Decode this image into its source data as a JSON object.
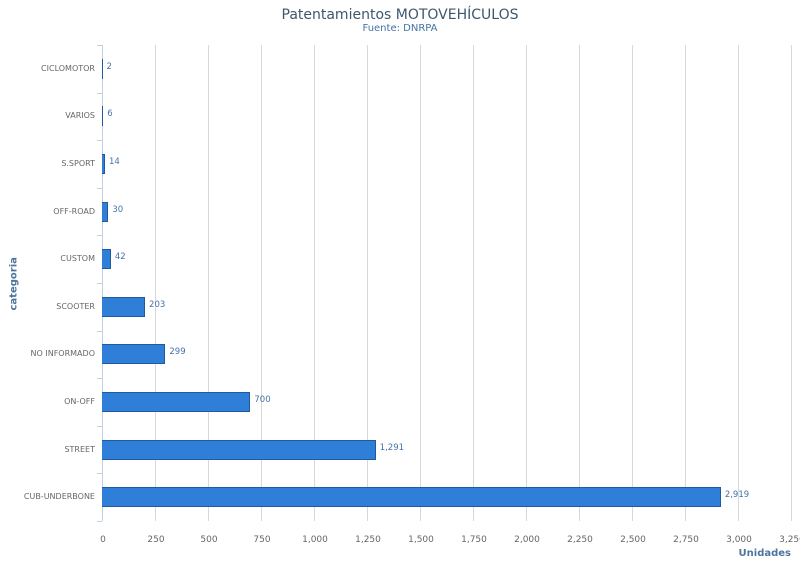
{
  "chart_data": {
    "type": "bar",
    "orientation": "horizontal",
    "title": "Patentamientos MOTOVEHÍCULOS",
    "subtitle": "Fuente: DNRPA",
    "xlabel": "Unidades",
    "ylabel": "categoria",
    "categories": [
      "CICLOMOTOR",
      "VARIOS",
      "S.SPORT",
      "OFF-ROAD",
      "CUSTOM",
      "SCOOTER",
      "NO INFORMADO",
      "ON-OFF",
      "STREET",
      "CUB-UNDERBONE"
    ],
    "values": [
      2,
      6,
      14,
      30,
      42,
      203,
      299,
      700,
      1291,
      2919
    ],
    "value_labels": [
      "2",
      "6",
      "14",
      "30",
      "42",
      "203",
      "299",
      "700",
      "1,291",
      "2,919"
    ],
    "xlim": [
      0,
      3250
    ],
    "xticks": [
      "0",
      "250",
      "500",
      "750",
      "1,000",
      "1,250",
      "1,500",
      "1,750",
      "2,000",
      "2,250",
      "2,500",
      "2,750",
      "3,000",
      "3,250"
    ],
    "grid": true,
    "legend": "none",
    "bar_color": "#2f7ed8"
  }
}
